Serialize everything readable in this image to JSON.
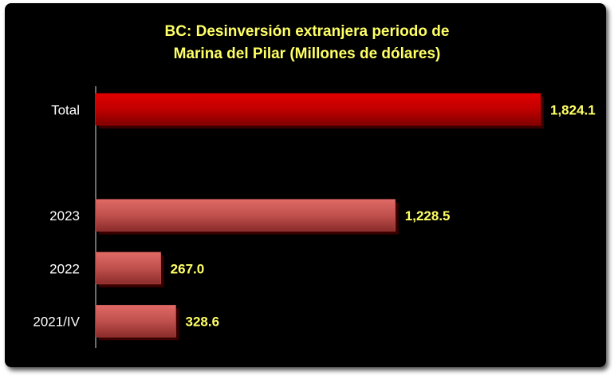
{
  "chart_data": {
    "type": "bar",
    "orientation": "horizontal",
    "title": [
      "BC: Desinversión extranjera periodo de",
      "Marina del Pilar  (Millones de dólares)"
    ],
    "categories": [
      "Total",
      null,
      "2023",
      "2022",
      "2021/IV"
    ],
    "values": [
      1824.1,
      null,
      1228.5,
      267.0,
      328.6
    ],
    "value_labels": [
      "1,824.1",
      null,
      "1,228.5",
      "267.0",
      "328.6"
    ],
    "colors": [
      "#c00000",
      null,
      "#c0504d",
      "#c0504d",
      "#c0504d"
    ]
  }
}
